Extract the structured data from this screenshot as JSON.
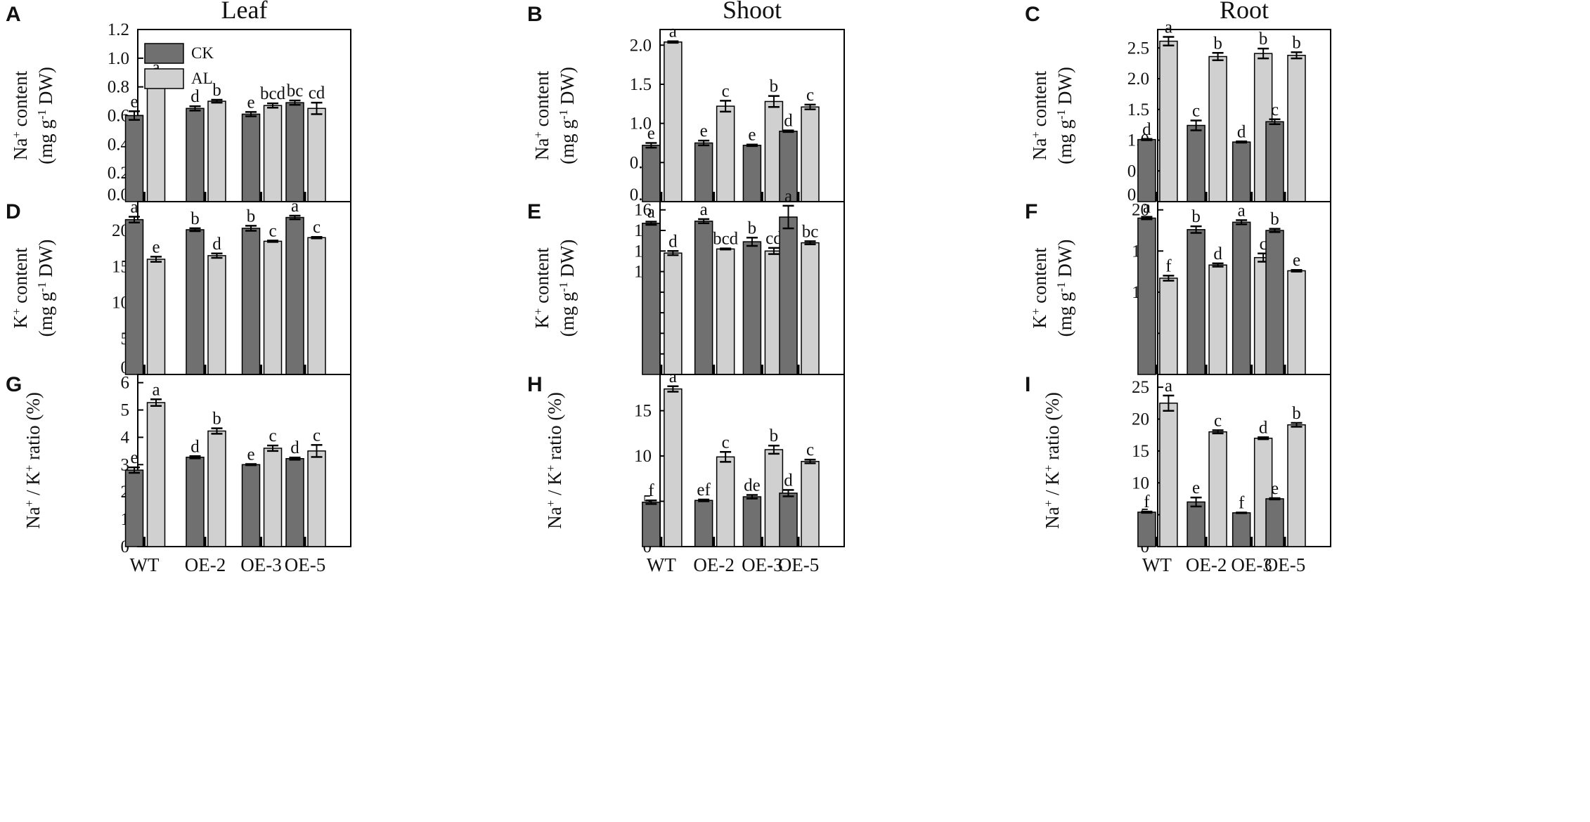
{
  "column_titles": [
    "Leaf",
    "Shoot",
    "Root"
  ],
  "legend": {
    "entries": [
      "CK",
      "AL"
    ]
  },
  "colors": {
    "CK": "#707070",
    "AL": "#d0d0d0",
    "axis": "#000000"
  },
  "chart_data": [
    {
      "panel": "A",
      "type": "bar",
      "title": "Leaf",
      "ylabel": "Na+ content (mg g-1 DW)",
      "ylim": [
        0,
        1.2
      ],
      "ytick_step": 0.2,
      "ytick_decimals": 1,
      "categories": [
        "WT",
        "OE-2",
        "OE-3",
        "OE-5"
      ],
      "series": [
        {
          "name": "CK",
          "values": [
            0.6,
            0.65,
            0.61,
            0.69
          ],
          "errors": [
            0.03,
            0.015,
            0.015,
            0.015
          ],
          "labels": [
            "e",
            "d",
            "e",
            "bc"
          ]
        },
        {
          "name": "AL",
          "values": [
            0.84,
            0.7,
            0.67,
            0.65
          ],
          "errors": [
            0.03,
            0.01,
            0.015,
            0.04
          ],
          "labels": [
            "a",
            "b",
            "bcd",
            "cd"
          ]
        }
      ]
    },
    {
      "panel": "B",
      "type": "bar",
      "title": "Shoot",
      "ylabel": "Na+ content (mg g-1 DW)",
      "ylim": [
        0,
        2.2
      ],
      "ytick_step": 0.5,
      "ytick_decimals": 1,
      "categories": [
        "WT",
        "OE-2",
        "OE-3",
        "OE-5"
      ],
      "series": [
        {
          "name": "CK",
          "values": [
            0.72,
            0.75,
            0.72,
            0.9
          ],
          "errors": [
            0.03,
            0.03,
            0.01,
            0.01
          ],
          "labels": [
            "e",
            "e",
            "e",
            "d"
          ]
        },
        {
          "name": "AL",
          "values": [
            2.04,
            1.22,
            1.28,
            1.21
          ],
          "errors": [
            0.01,
            0.07,
            0.07,
            0.03
          ],
          "labels": [
            "a",
            "c",
            "b",
            "c"
          ]
        }
      ]
    },
    {
      "panel": "C",
      "type": "bar",
      "title": "Root",
      "ylabel": "Na+ content (mg g-1 DW)",
      "ylim": [
        0,
        2.8
      ],
      "ytick_step": 0.5,
      "ytick_decimals": 1,
      "categories": [
        "WT",
        "OE-2",
        "OE-3",
        "OE-5"
      ],
      "series": [
        {
          "name": "CK",
          "values": [
            1.01,
            1.24,
            0.97,
            1.3
          ],
          "errors": [
            0.01,
            0.08,
            0.01,
            0.04
          ],
          "labels": [
            "d",
            "c",
            "d",
            "c"
          ]
        },
        {
          "name": "AL",
          "values": [
            2.61,
            2.36,
            2.41,
            2.38
          ],
          "errors": [
            0.07,
            0.06,
            0.08,
            0.05
          ],
          "labels": [
            "a",
            "b",
            "b",
            "b"
          ]
        }
      ]
    },
    {
      "panel": "D",
      "type": "bar",
      "title": "",
      "ylabel": "K+ content (mg g-1 DW)",
      "ylim": [
        0,
        24
      ],
      "ytick_step": 5,
      "ytick_decimals": 0,
      "categories": [
        "WT",
        "OE-2",
        "OE-3",
        "OE-5"
      ],
      "series": [
        {
          "name": "CK",
          "values": [
            21.5,
            20.1,
            20.3,
            21.8
          ],
          "errors": [
            0.4,
            0.2,
            0.35,
            0.25
          ],
          "labels": [
            "a",
            "b",
            "b",
            "a"
          ]
        },
        {
          "name": "AL",
          "values": [
            16.0,
            16.5,
            18.5,
            19.0
          ],
          "errors": [
            0.35,
            0.3,
            0.1,
            0.1
          ],
          "labels": [
            "e",
            "d",
            "c",
            "c"
          ]
        }
      ]
    },
    {
      "panel": "E",
      "type": "bar",
      "title": "",
      "ylabel": "K+ content (mg g-1 DW)",
      "ylim": [
        0,
        16.8
      ],
      "ytick_step": 2,
      "ytick_decimals": 0,
      "categories": [
        "WT",
        "OE-2",
        "OE-3",
        "OE-5"
      ],
      "series": [
        {
          "name": "CK",
          "values": [
            14.7,
            14.9,
            12.9,
            15.3
          ],
          "errors": [
            0.15,
            0.2,
            0.4,
            1.1
          ],
          "labels": [
            "a",
            "a",
            "b",
            "a"
          ]
        },
        {
          "name": "AL",
          "values": [
            11.8,
            12.2,
            12.0,
            12.8
          ],
          "errors": [
            0.2,
            0.05,
            0.3,
            0.15
          ],
          "labels": [
            "d",
            "bcd",
            "cd",
            "bc"
          ]
        }
      ]
    },
    {
      "panel": "F",
      "type": "bar",
      "title": "",
      "ylabel": "K+ content (mg g-1 DW)",
      "ylim": [
        0,
        21
      ],
      "ytick_step": 5,
      "ytick_decimals": 0,
      "categories": [
        "WT",
        "OE-2",
        "OE-3",
        "OE-5"
      ],
      "series": [
        {
          "name": "CK",
          "values": [
            19.0,
            17.6,
            18.5,
            17.5
          ],
          "errors": [
            0.15,
            0.4,
            0.25,
            0.2
          ],
          "labels": [
            "a",
            "b",
            "a",
            "b"
          ]
        },
        {
          "name": "AL",
          "values": [
            11.7,
            13.3,
            14.2,
            12.6
          ],
          "errors": [
            0.3,
            0.2,
            0.5,
            0.1
          ],
          "labels": [
            "f",
            "d",
            "c",
            "e"
          ]
        }
      ]
    },
    {
      "panel": "G",
      "type": "bar",
      "title": "",
      "ylabel": "Na+ / K+ ratio (%)",
      "ylim": [
        0,
        6.3
      ],
      "ytick_step": 1,
      "ytick_decimals": 0,
      "categories": [
        "WT",
        "OE-2",
        "OE-3",
        "OE-5"
      ],
      "series": [
        {
          "name": "CK",
          "values": [
            2.8,
            3.27,
            3.0,
            3.22
          ],
          "errors": [
            0.1,
            0.04,
            0.02,
            0.04
          ],
          "labels": [
            "e",
            "d",
            "e",
            "d"
          ]
        },
        {
          "name": "AL",
          "values": [
            5.27,
            4.23,
            3.6,
            3.5
          ],
          "errors": [
            0.12,
            0.1,
            0.1,
            0.22
          ],
          "labels": [
            "a",
            "b",
            "c",
            "c"
          ]
        }
      ]
    },
    {
      "panel": "H",
      "type": "bar",
      "title": "",
      "ylabel": "Na+ / K+ ratio (%)",
      "ylim": [
        0,
        19
      ],
      "ytick_step": 5,
      "ytick_decimals": 0,
      "categories": [
        "WT",
        "OE-2",
        "OE-3",
        "OE-5"
      ],
      "series": [
        {
          "name": "CK",
          "values": [
            4.9,
            5.1,
            5.5,
            5.9
          ],
          "errors": [
            0.2,
            0.1,
            0.2,
            0.35
          ],
          "labels": [
            "f",
            "ef",
            "de",
            "d"
          ]
        },
        {
          "name": "AL",
          "values": [
            17.4,
            9.9,
            10.7,
            9.4
          ],
          "errors": [
            0.3,
            0.55,
            0.45,
            0.2
          ],
          "labels": [
            "a",
            "c",
            "b",
            "c"
          ]
        }
      ]
    },
    {
      "panel": "I",
      "type": "bar",
      "title": "",
      "ylabel": "Na+ / K+ ratio (%)",
      "ylim": [
        0,
        27
      ],
      "ytick_step": 5,
      "ytick_decimals": 0,
      "categories": [
        "WT",
        "OE-2",
        "OE-3",
        "OE-5"
      ],
      "series": [
        {
          "name": "CK",
          "values": [
            5.4,
            7.0,
            5.3,
            7.5
          ],
          "errors": [
            0.1,
            0.7,
            0.05,
            0.1
          ],
          "labels": [
            "f",
            "e",
            "f",
            "e"
          ]
        },
        {
          "name": "AL",
          "values": [
            22.5,
            18.0,
            17.0,
            19.1
          ],
          "errors": [
            1.2,
            0.25,
            0.15,
            0.3
          ],
          "labels": [
            "a",
            "c",
            "d",
            "b"
          ]
        }
      ]
    }
  ]
}
